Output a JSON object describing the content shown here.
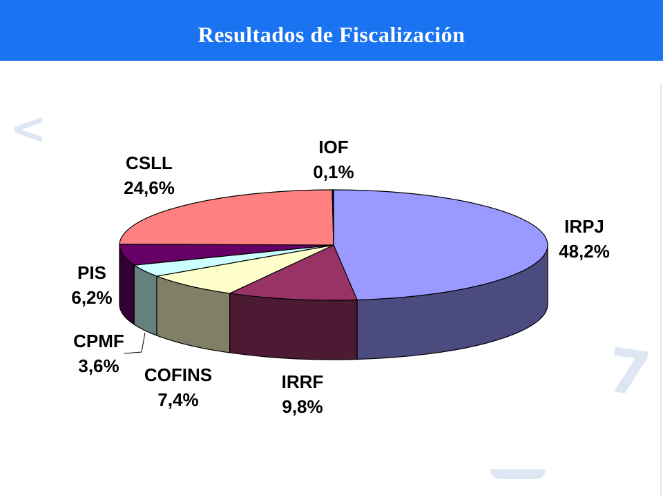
{
  "header": {
    "title": "Resultados de Fiscalización"
  },
  "watermark": {
    "left_glyph": "<",
    "right_glyph": "7"
  },
  "chart_data": {
    "type": "pie",
    "title": "Resultados de Fiscalización",
    "style": "3d-exploded-none",
    "slices": [
      {
        "name": "IRPJ",
        "value_label": "48,2%",
        "value": 48.2,
        "top_color": "#9999ff",
        "side_color": "#4b4b80"
      },
      {
        "name": "IRRF",
        "value_label": "9,8%",
        "value": 9.8,
        "top_color": "#993366",
        "side_color": "#4c1a33"
      },
      {
        "name": "COFINS",
        "value_label": "7,4%",
        "value": 7.4,
        "top_color": "#ffffcc",
        "side_color": "#808066"
      },
      {
        "name": "CPMF",
        "value_label": "3,6%",
        "value": 3.6,
        "top_color": "#ccffff",
        "side_color": "#668080"
      },
      {
        "name": "PIS",
        "value_label": "6,2%",
        "value": 6.2,
        "top_color": "#660066",
        "side_color": "#330033"
      },
      {
        "name": "CSLL",
        "value_label": "24,6%",
        "value": 24.6,
        "top_color": "#ff8080",
        "side_color": "#804040"
      },
      {
        "name": "IOF",
        "value_label": "0,1%",
        "value": 0.1,
        "top_color": "#000080",
        "side_color": "#000040"
      }
    ]
  }
}
